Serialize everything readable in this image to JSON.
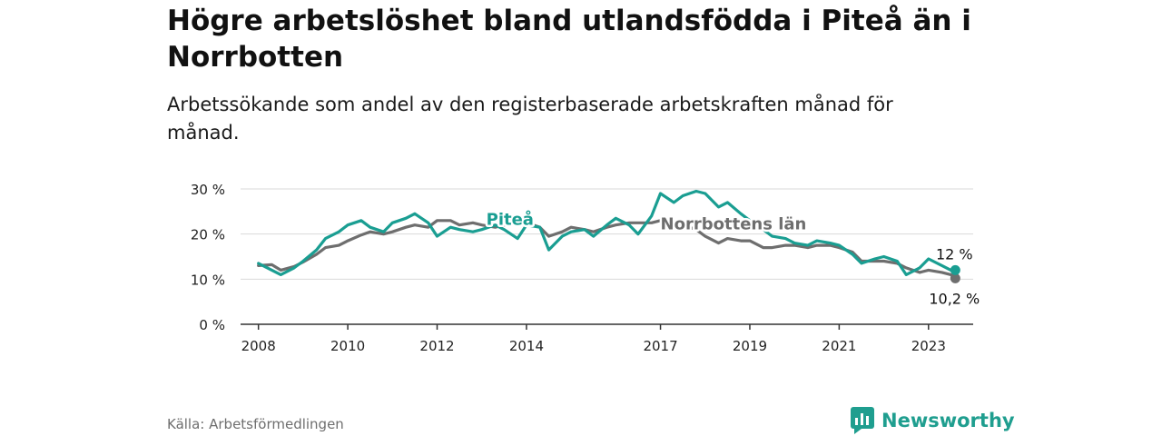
{
  "title": "Högre arbetslöshet bland utlandsfödda i Piteå än i Norrbotten",
  "subtitle": "Arbetssökande som andel av den registerbaserade arbetskraften månad för månad.",
  "source": "Källa: Arbetsförmedlingen",
  "brand": {
    "name": "Newsworthy",
    "icon": "newsworthy-logo-icon"
  },
  "colors": {
    "pitea": "#1a9e92",
    "norrbotten": "#6e6e6e",
    "grid": "#d9d9d9",
    "axis": "#333333"
  },
  "chart_data": {
    "type": "line",
    "title": "Högre arbetslöshet bland utlandsfödda i Piteå än i Norrbotten",
    "ylabel": "",
    "xlabel": "",
    "ylim": [
      0,
      30
    ],
    "xlim": [
      2007.6,
      2024.0
    ],
    "y_ticks": [
      0,
      10,
      20,
      30
    ],
    "y_tick_labels": [
      "0 %",
      "10 %",
      "20 %",
      "30 %"
    ],
    "x_ticks": [
      2008,
      2010,
      2012,
      2014,
      2017,
      2019,
      2021,
      2023
    ],
    "x_tick_labels": [
      "2008",
      "2010",
      "2012",
      "2014",
      "2017",
      "2019",
      "2021",
      "2023"
    ],
    "series": [
      {
        "name": "Norrbottens län",
        "label": "Norrbottens län",
        "end_label": "10,2 %",
        "end_value": 10.2,
        "points": [
          [
            2008.0,
            13.0
          ],
          [
            2008.3,
            13.2
          ],
          [
            2008.5,
            12.0
          ],
          [
            2008.8,
            12.8
          ],
          [
            2009.0,
            13.8
          ],
          [
            2009.3,
            15.5
          ],
          [
            2009.5,
            17.0
          ],
          [
            2009.8,
            17.5
          ],
          [
            2010.0,
            18.5
          ],
          [
            2010.3,
            19.8
          ],
          [
            2010.5,
            20.5
          ],
          [
            2010.8,
            20.0
          ],
          [
            2011.0,
            20.5
          ],
          [
            2011.3,
            21.5
          ],
          [
            2011.5,
            22.0
          ],
          [
            2011.8,
            21.5
          ],
          [
            2012.0,
            23.0
          ],
          [
            2012.3,
            23.0
          ],
          [
            2012.5,
            22.0
          ],
          [
            2012.8,
            22.5
          ],
          [
            2013.0,
            22.0
          ],
          [
            2013.3,
            21.5
          ],
          [
            2013.5,
            22.0
          ],
          [
            2013.8,
            22.5
          ],
          [
            2014.0,
            22.5
          ],
          [
            2014.3,
            21.5
          ],
          [
            2014.5,
            19.5
          ],
          [
            2014.8,
            20.5
          ],
          [
            2015.0,
            21.5
          ],
          [
            2015.3,
            21.0
          ],
          [
            2015.5,
            20.5
          ],
          [
            2015.8,
            21.5
          ],
          [
            2016.0,
            22.0
          ],
          [
            2016.3,
            22.5
          ],
          [
            2016.5,
            22.5
          ],
          [
            2016.8,
            22.5
          ],
          [
            2017.0,
            23.0
          ],
          [
            2017.3,
            22.5
          ],
          [
            2017.5,
            22.0
          ],
          [
            2017.8,
            21.0
          ],
          [
            2018.0,
            19.5
          ],
          [
            2018.3,
            18.0
          ],
          [
            2018.5,
            19.0
          ],
          [
            2018.8,
            18.5
          ],
          [
            2019.0,
            18.5
          ],
          [
            2019.3,
            17.0
          ],
          [
            2019.5,
            17.0
          ],
          [
            2019.8,
            17.5
          ],
          [
            2020.0,
            17.5
          ],
          [
            2020.3,
            17.0
          ],
          [
            2020.5,
            17.5
          ],
          [
            2020.8,
            17.5
          ],
          [
            2021.0,
            17.0
          ],
          [
            2021.3,
            16.0
          ],
          [
            2021.5,
            14.0
          ],
          [
            2021.8,
            14.0
          ],
          [
            2022.0,
            14.0
          ],
          [
            2022.3,
            13.5
          ],
          [
            2022.5,
            12.5
          ],
          [
            2022.8,
            11.5
          ],
          [
            2023.0,
            12.0
          ],
          [
            2023.3,
            11.5
          ],
          [
            2023.5,
            11.0
          ],
          [
            2023.6,
            10.2
          ]
        ]
      },
      {
        "name": "Piteå",
        "label": "Piteå",
        "end_label": "12 %",
        "end_value": 12.0,
        "points": [
          [
            2008.0,
            13.5
          ],
          [
            2008.3,
            12.0
          ],
          [
            2008.5,
            11.0
          ],
          [
            2008.8,
            12.5
          ],
          [
            2009.0,
            14.0
          ],
          [
            2009.3,
            16.5
          ],
          [
            2009.5,
            19.0
          ],
          [
            2009.8,
            20.5
          ],
          [
            2010.0,
            22.0
          ],
          [
            2010.3,
            23.0
          ],
          [
            2010.5,
            21.5
          ],
          [
            2010.8,
            20.5
          ],
          [
            2011.0,
            22.5
          ],
          [
            2011.3,
            23.5
          ],
          [
            2011.5,
            24.5
          ],
          [
            2011.8,
            22.5
          ],
          [
            2012.0,
            19.5
          ],
          [
            2012.3,
            21.5
          ],
          [
            2012.5,
            21.0
          ],
          [
            2012.8,
            20.5
          ],
          [
            2013.0,
            21.0
          ],
          [
            2013.3,
            22.0
          ],
          [
            2013.5,
            21.0
          ],
          [
            2013.8,
            19.0
          ],
          [
            2014.0,
            22.0
          ],
          [
            2014.3,
            21.5
          ],
          [
            2014.5,
            16.5
          ],
          [
            2014.8,
            19.5
          ],
          [
            2015.0,
            20.5
          ],
          [
            2015.3,
            21.0
          ],
          [
            2015.5,
            19.5
          ],
          [
            2015.8,
            22.0
          ],
          [
            2016.0,
            23.5
          ],
          [
            2016.3,
            22.0
          ],
          [
            2016.5,
            20.0
          ],
          [
            2016.8,
            24.0
          ],
          [
            2017.0,
            29.0
          ],
          [
            2017.3,
            27.0
          ],
          [
            2017.5,
            28.5
          ],
          [
            2017.8,
            29.5
          ],
          [
            2018.0,
            29.0
          ],
          [
            2018.3,
            26.0
          ],
          [
            2018.5,
            27.0
          ],
          [
            2018.8,
            24.5
          ],
          [
            2019.0,
            23.0
          ],
          [
            2019.3,
            21.0
          ],
          [
            2019.5,
            19.5
          ],
          [
            2019.8,
            19.0
          ],
          [
            2020.0,
            18.0
          ],
          [
            2020.3,
            17.5
          ],
          [
            2020.5,
            18.5
          ],
          [
            2020.8,
            18.0
          ],
          [
            2021.0,
            17.5
          ],
          [
            2021.3,
            15.5
          ],
          [
            2021.5,
            13.5
          ],
          [
            2021.8,
            14.5
          ],
          [
            2022.0,
            15.0
          ],
          [
            2022.3,
            14.0
          ],
          [
            2022.5,
            11.0
          ],
          [
            2022.8,
            12.5
          ],
          [
            2023.0,
            14.5
          ],
          [
            2023.3,
            13.0
          ],
          [
            2023.5,
            12.0
          ],
          [
            2023.6,
            12.0
          ]
        ]
      }
    ]
  }
}
